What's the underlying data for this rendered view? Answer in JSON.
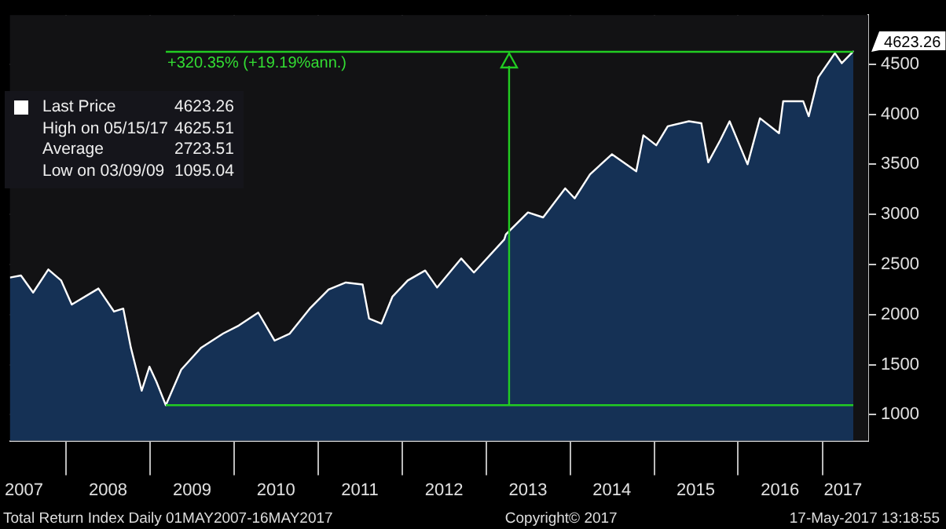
{
  "chart_data": {
    "type": "area",
    "x": [
      "2007-05-01",
      "2007-06-18",
      "2007-08-10",
      "2007-10-15",
      "2007-12-10",
      "2008-01-25",
      "2008-05-20",
      "2008-07-27",
      "2008-09-05",
      "2008-10-08",
      "2008-11-24",
      "2008-12-28",
      "2009-01-27",
      "2009-03-09",
      "2009-05-15",
      "2009-08-10",
      "2009-11-13",
      "2010-01-20",
      "2010-04-15",
      "2010-06-25",
      "2010-08-30",
      "2010-11-25",
      "2011-02-15",
      "2011-05-01",
      "2011-07-13",
      "2011-08-10",
      "2011-10-03",
      "2011-11-20",
      "2012-01-25",
      "2012-04-10",
      "2012-06-01",
      "2012-09-14",
      "2012-11-08",
      "2013-03-20",
      "2013-03-27",
      "2013-07-01",
      "2013-09-05",
      "2013-12-10",
      "2014-01-20",
      "2014-03-28",
      "2014-07-01",
      "2014-10-15",
      "2014-11-15",
      "2015-01-10",
      "2015-03-01",
      "2015-06-01",
      "2015-07-25",
      "2015-08-24",
      "2015-10-15",
      "2015-11-25",
      "2016-02-11",
      "2016-04-05",
      "2016-06-27",
      "2016-07-15",
      "2016-10-10",
      "2016-11-03",
      "2016-12-15",
      "2017-02-25",
      "2017-03-27",
      "2017-05-15",
      "2017-05-16"
    ],
    "series": [
      {
        "name": "Last Price",
        "color": "#ffffff",
        "values": [
          2370,
          2390,
          2220,
          2450,
          2340,
          2100,
          2260,
          2030,
          2060,
          1670,
          1240,
          1480,
          1330,
          1095.04,
          1450,
          1670,
          1810,
          1890,
          2020,
          1740,
          1810,
          2060,
          2250,
          2320,
          2300,
          1960,
          1910,
          2180,
          2340,
          2440,
          2270,
          2560,
          2420,
          2750,
          2800,
          3020,
          2970,
          3260,
          3160,
          3400,
          3600,
          3430,
          3790,
          3690,
          3880,
          3930,
          3910,
          3520,
          3740,
          3930,
          3500,
          3960,
          3810,
          4130,
          4130,
          3980,
          4370,
          4610,
          4510,
          4625.51,
          4623.26
        ]
      }
    ],
    "xlim": [
      "2007-05-01",
      "2017-07-20"
    ],
    "xticks": [
      {
        "value": "2007-07-01",
        "label": "2007"
      },
      {
        "value": "2008-01-01",
        "label": null
      },
      {
        "value": "2008-07-01",
        "label": "2008"
      },
      {
        "value": "2009-01-01",
        "label": null
      },
      {
        "value": "2009-07-01",
        "label": "2009"
      },
      {
        "value": "2010-01-01",
        "label": null
      },
      {
        "value": "2010-07-01",
        "label": "2010"
      },
      {
        "value": "2011-01-01",
        "label": null
      },
      {
        "value": "2011-07-01",
        "label": "2011"
      },
      {
        "value": "2012-01-01",
        "label": null
      },
      {
        "value": "2012-07-01",
        "label": "2012"
      },
      {
        "value": "2013-01-01",
        "label": null
      },
      {
        "value": "2013-07-01",
        "label": "2013"
      },
      {
        "value": "2014-01-01",
        "label": null
      },
      {
        "value": "2014-07-01",
        "label": "2014"
      },
      {
        "value": "2015-01-01",
        "label": null
      },
      {
        "value": "2015-07-01",
        "label": "2015"
      },
      {
        "value": "2016-01-01",
        "label": null
      },
      {
        "value": "2016-07-01",
        "label": "2016"
      },
      {
        "value": "2017-01-01",
        "label": null
      },
      {
        "value": "2017-04-01",
        "label": "2017"
      }
    ],
    "ylim": [
      740,
      4990
    ],
    "yticks": [
      1000,
      1500,
      2000,
      2500,
      3000,
      3500,
      4000,
      4500
    ],
    "grid": true,
    "legend": "top left",
    "ref_lines": [
      {
        "axis": "y",
        "value": 1095.04,
        "color": "#22cc22"
      },
      {
        "axis": "y",
        "value": 4623.26,
        "color": "#22cc22"
      },
      {
        "axis": "x",
        "value": "2013-04-10",
        "color": "#22cc22"
      }
    ],
    "annotations": [
      {
        "text": "+320.35% (+19.19%ann.)",
        "x": "2009-03-09",
        "y": 4623.26
      },
      "4623.26",
      "4623.26",
      "High on 05/15/17",
      "4625.51",
      "Average",
      "2723.51",
      "Low on 03/09/09",
      "1095.04",
      "Total Return Index  Daily 01MAY2007-16MAY2017",
      "Copyright© 2017",
      "17-May-2017 13:18:55"
    ]
  }
}
